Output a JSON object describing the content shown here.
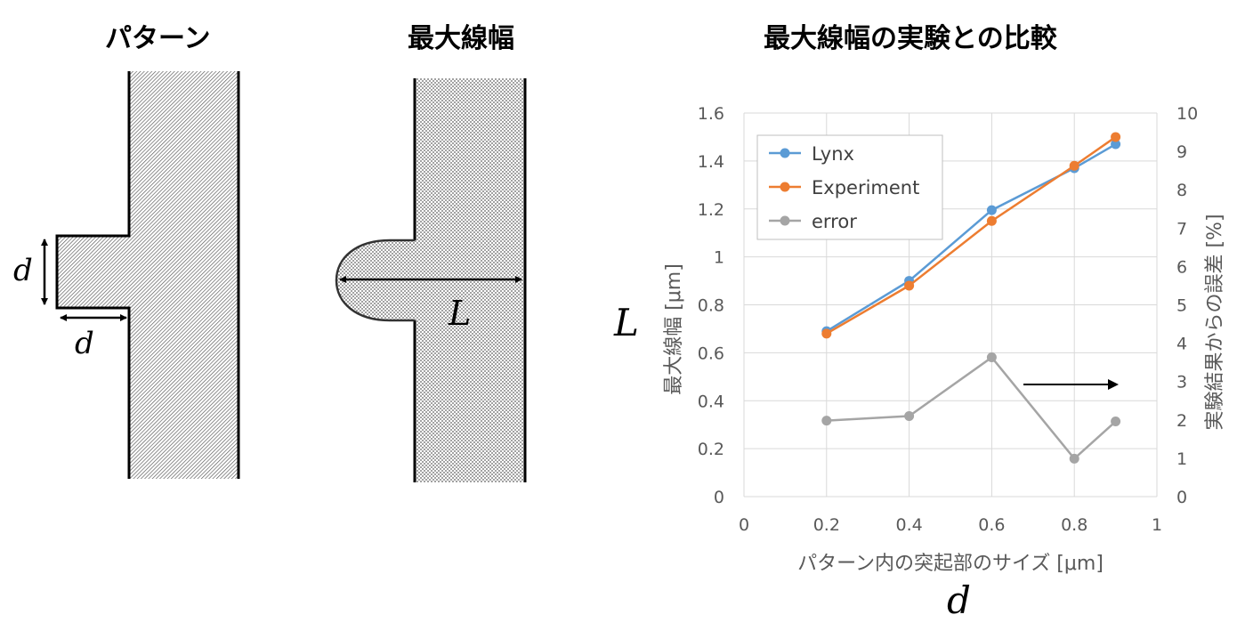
{
  "headings": {
    "pattern": "パターン",
    "max_width": "最大線幅",
    "comparison": "最大線幅の実験との比較"
  },
  "diagram": {
    "d_vertical": "d",
    "d_horizontal": "d",
    "L": "L"
  },
  "side_labels": {
    "left_L": "L",
    "bottom_d": "d"
  },
  "colors": {
    "lynx": "#5b9bd5",
    "experiment": "#ed7d31",
    "error": "#a5a5a5",
    "grid": "#d9d9d9",
    "axis_text": "#595959"
  },
  "chart_data": {
    "type": "line",
    "title": "",
    "xlabel": "パターン内の突起部のサイズ [μm]",
    "ylabel": "最大線幅 [μm]",
    "y2label": "実験結果からの誤差 [%]",
    "xlim": [
      0,
      1
    ],
    "ylim": [
      0,
      1.6
    ],
    "y2lim": [
      0,
      10
    ],
    "x_ticks": [
      "0",
      "0.2",
      "0.4",
      "0.6",
      "0.8",
      "1"
    ],
    "y_ticks": [
      "0",
      "0.2",
      "0.4",
      "0.6",
      "0.8",
      "1",
      "1.2",
      "1.4",
      "1.6"
    ],
    "y2_ticks": [
      "0",
      "1",
      "2",
      "3",
      "4",
      "5",
      "6",
      "7",
      "8",
      "9",
      "10"
    ],
    "x": [
      0.2,
      0.4,
      0.6,
      0.8,
      0.9
    ],
    "series": [
      {
        "name": "Lynx",
        "axis": "left",
        "values": [
          0.69,
          0.9,
          1.195,
          1.37,
          1.47
        ]
      },
      {
        "name": "Experiment",
        "axis": "left",
        "values": [
          0.68,
          0.88,
          1.15,
          1.38,
          1.5
        ]
      },
      {
        "name": "error",
        "axis": "right",
        "values": [
          1.98,
          2.1,
          3.63,
          0.99,
          1.96
        ]
      }
    ],
    "grid": true,
    "legend_position": "top-left"
  }
}
